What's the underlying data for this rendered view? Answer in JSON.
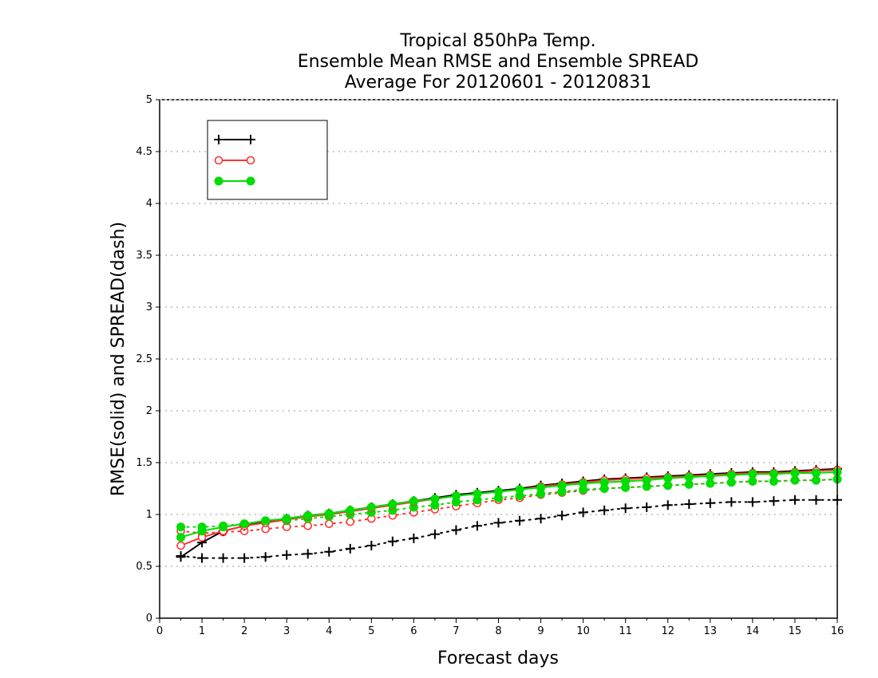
{
  "chart_data": {
    "type": "line",
    "title": [
      "Tropical 850hPa Temp.",
      "Ensemble Mean RMSE and Ensemble SPREAD",
      "Average For 20120601 - 20120831"
    ],
    "xlabel": "Forecast days",
    "ylabel": "RMSE(solid) and SPREAD(dash)",
    "xlim": [
      0,
      16
    ],
    "ylim": [
      0,
      5
    ],
    "xticks": [
      "0",
      "1",
      "2",
      "3",
      "4",
      "5",
      "6",
      "7",
      "8",
      "9",
      "10",
      "11",
      "12",
      "13",
      "14",
      "15",
      "16"
    ],
    "yticks": [
      "0",
      "0.5",
      "1",
      "1.5",
      "2",
      "2.5",
      "3",
      "3.5",
      "4",
      "4.5",
      "5"
    ],
    "grid": true,
    "legend_position": "top-left",
    "x": [
      0.5,
      1,
      1.5,
      2,
      2.5,
      3,
      3.5,
      4,
      4.5,
      5,
      5.5,
      6,
      6.5,
      7,
      7.5,
      8,
      8.5,
      9,
      9.5,
      10,
      10.5,
      11,
      11.5,
      12,
      12.5,
      13,
      13.5,
      14,
      14.5,
      15,
      15.5,
      16
    ],
    "series": [
      {
        "name": "",
        "color": "#000000",
        "marker": "plus",
        "rmse": [
          0.59,
          0.73,
          0.84,
          0.89,
          0.93,
          0.96,
          0.99,
          1.01,
          1.04,
          1.07,
          1.1,
          1.13,
          1.16,
          1.19,
          1.21,
          1.23,
          1.25,
          1.28,
          1.3,
          1.32,
          1.34,
          1.35,
          1.36,
          1.37,
          1.38,
          1.39,
          1.4,
          1.41,
          1.41,
          1.42,
          1.43,
          1.44
        ],
        "spread": [
          0.6,
          0.58,
          0.58,
          0.58,
          0.59,
          0.61,
          0.62,
          0.64,
          0.67,
          0.7,
          0.74,
          0.77,
          0.81,
          0.85,
          0.89,
          0.92,
          0.94,
          0.96,
          0.99,
          1.02,
          1.04,
          1.06,
          1.07,
          1.09,
          1.1,
          1.11,
          1.12,
          1.12,
          1.13,
          1.14,
          1.14,
          1.14
        ]
      },
      {
        "name": "",
        "color": "#ff3333",
        "marker": "open-circle",
        "rmse": [
          0.7,
          0.78,
          0.84,
          0.89,
          0.92,
          0.95,
          0.98,
          1.0,
          1.03,
          1.06,
          1.09,
          1.12,
          1.15,
          1.18,
          1.2,
          1.22,
          1.24,
          1.27,
          1.29,
          1.31,
          1.33,
          1.34,
          1.35,
          1.36,
          1.37,
          1.38,
          1.39,
          1.4,
          1.4,
          1.41,
          1.42,
          1.43
        ],
        "spread": [
          0.84,
          0.82,
          0.83,
          0.84,
          0.86,
          0.88,
          0.89,
          0.91,
          0.93,
          0.96,
          0.99,
          1.02,
          1.05,
          1.08,
          1.11,
          1.14,
          1.16,
          1.19,
          1.21,
          1.23,
          1.25,
          1.26,
          1.27,
          1.28,
          1.29,
          1.3,
          1.31,
          1.32,
          1.32,
          1.33,
          1.33,
          1.34
        ]
      },
      {
        "name": "",
        "color": "#00dd00",
        "marker": "filled-circle",
        "rmse": [
          0.78,
          0.84,
          0.88,
          0.91,
          0.94,
          0.96,
          0.99,
          1.01,
          1.04,
          1.07,
          1.1,
          1.13,
          1.15,
          1.18,
          1.2,
          1.22,
          1.24,
          1.26,
          1.28,
          1.3,
          1.31,
          1.32,
          1.33,
          1.35,
          1.36,
          1.37,
          1.38,
          1.39,
          1.39,
          1.4,
          1.4,
          1.41
        ],
        "spread": [
          0.88,
          0.88,
          0.89,
          0.91,
          0.93,
          0.94,
          0.96,
          0.98,
          1.0,
          1.02,
          1.04,
          1.07,
          1.09,
          1.12,
          1.14,
          1.16,
          1.18,
          1.2,
          1.22,
          1.24,
          1.25,
          1.26,
          1.27,
          1.28,
          1.29,
          1.3,
          1.31,
          1.32,
          1.32,
          1.33,
          1.33,
          1.34
        ]
      }
    ]
  }
}
